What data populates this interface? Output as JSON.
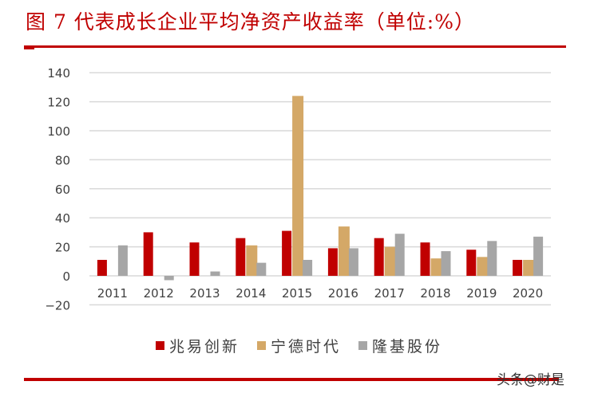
{
  "header": {
    "title": "图 7 代表成长企业平均净资产收益率（单位:%）"
  },
  "watermark": "头条@财是",
  "legend": [
    {
      "label": "兆易创新",
      "color": "#c00000"
    },
    {
      "label": "宁德时代",
      "color": "#d4a867"
    },
    {
      "label": "隆基股份",
      "color": "#a6a6a6"
    }
  ],
  "chart_data": {
    "type": "bar",
    "title": "图 7 代表成长企业平均净资产收益率（单位:%）",
    "xlabel": "",
    "ylabel": "",
    "categories": [
      "2011",
      "2012",
      "2013",
      "2014",
      "2015",
      "2016",
      "2017",
      "2018",
      "2019",
      "2020"
    ],
    "series": [
      {
        "name": "兆易创新",
        "color": "#c00000",
        "values": [
          11,
          30,
          23,
          26,
          31,
          19,
          26,
          23,
          18,
          11
        ]
      },
      {
        "name": "宁德时代",
        "color": "#d4a867",
        "values": [
          null,
          null,
          null,
          21,
          124,
          34,
          20,
          12,
          13,
          11
        ]
      },
      {
        "name": "隆基股份",
        "color": "#a6a6a6",
        "values": [
          21,
          -3,
          3,
          9,
          11,
          19,
          29,
          17,
          24,
          27
        ]
      }
    ],
    "ylim": [
      -20,
      140
    ],
    "yticks": [
      140,
      120,
      100,
      80,
      60,
      40,
      20,
      0,
      -20
    ],
    "grid": true,
    "legend_position": "bottom"
  }
}
